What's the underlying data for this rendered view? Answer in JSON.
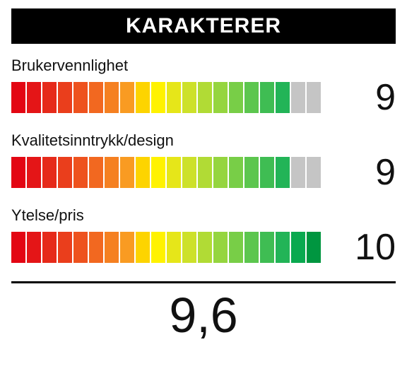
{
  "header": {
    "title": "KARAKTERER"
  },
  "segments": 20,
  "segment_colors": [
    "#e30613",
    "#e41517",
    "#e62a1a",
    "#ea3e1c",
    "#ee521e",
    "#f26820",
    "#f58021",
    "#f99b22",
    "#fdd400",
    "#fff200",
    "#e6e619",
    "#cde12a",
    "#b1db35",
    "#95d53f",
    "#78ce47",
    "#5cc64e",
    "#3fbd53",
    "#22b457",
    "#0aa94f",
    "#009640"
  ],
  "inactive_color": "#c5c5c5",
  "bar": {
    "segment_width": 20,
    "segment_height": 44,
    "segment_gap": 2
  },
  "ratings": [
    {
      "label": "Brukervennlighet",
      "score": 9,
      "filled": 18
    },
    {
      "label": "Kvalitetsinntrykk/design",
      "score": 9,
      "filled": 18
    },
    {
      "label": "Ytelse/pris",
      "score": 10,
      "filled": 20
    }
  ],
  "total": {
    "value": "9,6"
  },
  "typography": {
    "header_fontsize": 30,
    "label_fontsize": 22,
    "score_fontsize": 52,
    "total_fontsize": 70,
    "text_color": "#111111",
    "header_bg": "#000000",
    "header_fg": "#ffffff"
  }
}
